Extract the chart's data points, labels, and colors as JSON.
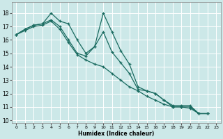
{
  "xlabel": "Humidex (Indice chaleur)",
  "background_color": "#cce8e8",
  "grid_color_major": "#ffffff",
  "grid_color_minor": "#e8f4f4",
  "line_color": "#1a6b60",
  "xlim": [
    -0.5,
    23.5
  ],
  "ylim": [
    9.8,
    18.8
  ],
  "yticks": [
    10,
    11,
    12,
    13,
    14,
    15,
    16,
    17,
    18
  ],
  "xticks": [
    0,
    1,
    2,
    3,
    4,
    5,
    6,
    7,
    8,
    9,
    10,
    11,
    12,
    13,
    14,
    15,
    16,
    17,
    18,
    19,
    20,
    21,
    22,
    23
  ],
  "lines": [
    {
      "x": [
        0,
        1,
        2,
        3,
        4,
        5,
        6,
        7,
        8,
        9,
        10,
        11,
        12,
        13,
        14,
        15,
        16,
        17,
        18,
        19,
        20,
        21,
        22
      ],
      "y": [
        16.4,
        16.8,
        17.1,
        17.2,
        18.0,
        17.4,
        17.2,
        16.0,
        15.0,
        15.5,
        16.6,
        15.1,
        14.3,
        13.5,
        12.3,
        12.2,
        12.0,
        11.5,
        11.1,
        11.1,
        11.1,
        10.5,
        10.5
      ]
    },
    {
      "x": [
        0,
        1,
        2,
        3,
        4,
        5,
        6,
        7,
        8,
        9,
        10,
        11,
        12,
        13,
        14,
        15,
        16,
        17,
        18,
        19,
        20,
        21,
        22
      ],
      "y": [
        16.4,
        16.8,
        17.1,
        17.2,
        17.5,
        17.0,
        16.0,
        15.0,
        14.8,
        15.5,
        18.0,
        16.6,
        15.2,
        14.2,
        12.5,
        12.2,
        12.0,
        11.5,
        11.0,
        11.0,
        11.0,
        10.5,
        10.5
      ]
    },
    {
      "x": [
        0,
        1,
        2,
        3,
        4,
        5,
        6,
        7,
        8,
        9,
        10,
        11,
        12,
        13,
        14,
        15,
        16,
        17,
        18,
        19,
        20,
        21,
        22
      ],
      "y": [
        16.4,
        16.7,
        17.0,
        17.1,
        17.4,
        16.8,
        15.8,
        14.9,
        14.5,
        14.2,
        14.0,
        13.5,
        13.0,
        12.5,
        12.2,
        11.8,
        11.5,
        11.2,
        11.0,
        11.0,
        10.9,
        10.5,
        10.5
      ]
    }
  ]
}
